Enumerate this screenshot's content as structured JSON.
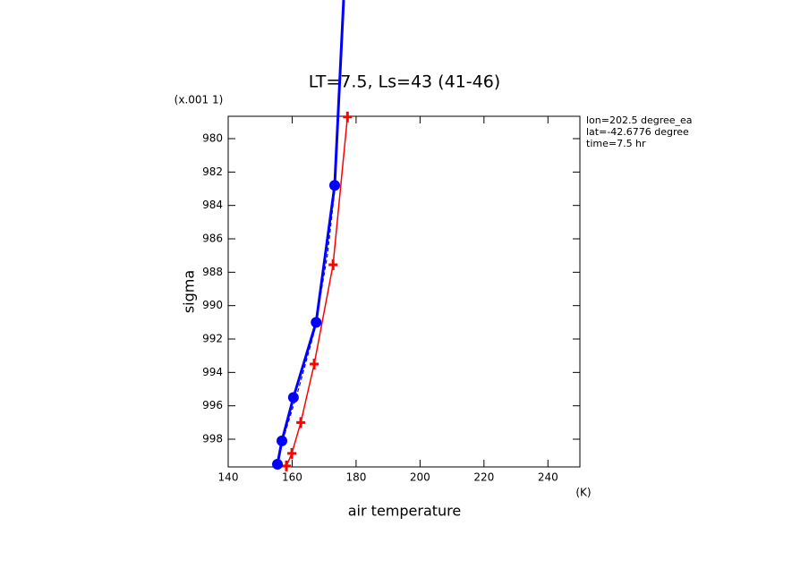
{
  "chart_data": {
    "type": "line",
    "title": "LT=7.5, Ls=43 (41-46)",
    "xlabel": "air temperature",
    "xunit": "(K)",
    "ylabel": "sigma",
    "yunit": "(x.001 1)",
    "annotations": [
      "lon=202.5 degree_ea",
      "lat=-42.6776 degree",
      "time=7.5 hr"
    ],
    "xlim": [
      140,
      250
    ],
    "xticks": [
      140,
      160,
      180,
      200,
      220,
      240
    ],
    "ylim": [
      978.66,
      999.66
    ],
    "yticks": [
      980,
      982,
      984,
      986,
      988,
      990,
      992,
      994,
      996,
      998
    ],
    "y_inverted": true,
    "series": [
      {
        "color": "#ff0000",
        "marker": "plus",
        "width": 1.5,
        "dash": false,
        "x": [
          177.3,
          172.8,
          166.9,
          162.7,
          159.9,
          158.2
        ],
        "values": [
          978.7,
          987.55,
          993.5,
          997.0,
          998.85,
          999.6
        ]
      },
      {
        "color": "#0000ff",
        "marker": "none",
        "width": 1.2,
        "dash": true,
        "x": [
          173.5,
          171,
          167,
          162,
          157,
          155
        ],
        "values": [
          982.8,
          987,
          991.5,
          995,
          998.1,
          999.5
        ]
      },
      {
        "color": "#0000ff",
        "marker": "dot",
        "width": 3,
        "dash": false,
        "x": [
          176.1,
          173.3,
          167.5,
          160.4,
          156.8,
          155.4
        ],
        "values": [
          971.7,
          982.8,
          991.0,
          995.5,
          998.1,
          999.5
        ]
      }
    ]
  }
}
